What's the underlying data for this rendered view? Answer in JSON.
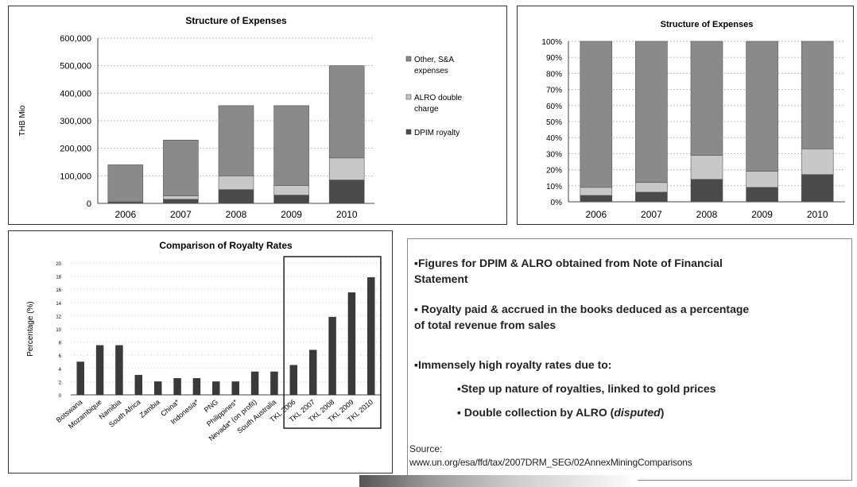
{
  "chart_data": [
    {
      "type": "bar",
      "stacked": true,
      "title": "Structure of Expenses",
      "ylabel": "THB Mio",
      "ylim": [
        0,
        600000
      ],
      "yticks": [
        "600,000",
        "500,000",
        "400,000",
        "300,000",
        "200,000",
        "100,000",
        "0"
      ],
      "categories": [
        "2006",
        "2007",
        "2008",
        "2009",
        "2010"
      ],
      "series": [
        {
          "name": "DPIM royalty",
          "color": "#4a4a4a",
          "values": [
            5000,
            15000,
            50000,
            30000,
            85000
          ]
        },
        {
          "name": "ALRO double charge",
          "color": "#c8c8c8",
          "values": [
            3000,
            12000,
            50000,
            35000,
            80000
          ]
        },
        {
          "name": "Other, S&A expenses",
          "color": "#8a8a8a",
          "values": [
            132000,
            203000,
            255000,
            290000,
            335000
          ]
        }
      ],
      "legend_position": "right"
    },
    {
      "type": "bar",
      "stacked": true,
      "percent": true,
      "title": "Structure of Expenses",
      "ylim": [
        0,
        100
      ],
      "yticks": [
        "100%",
        "90%",
        "80%",
        "70%",
        "60%",
        "50%",
        "40%",
        "30%",
        "20%",
        "10%",
        "0%"
      ],
      "categories": [
        "2006",
        "2007",
        "2008",
        "2009",
        "2010"
      ],
      "series": [
        {
          "color": "#4a4a4a",
          "values": [
            4,
            6,
            14,
            9,
            17
          ]
        },
        {
          "color": "#c8c8c8",
          "values": [
            5,
            6,
            15,
            10,
            16
          ]
        },
        {
          "color": "#8a8a8a",
          "values": [
            91,
            88,
            71,
            81,
            67
          ]
        }
      ]
    },
    {
      "type": "bar",
      "title": "Comparison of Royalty Rates",
      "ylabel": "Percentage (%)",
      "ylim": [
        0,
        20
      ],
      "yticks": [
        "20",
        "18",
        "16",
        "14",
        "12",
        "10",
        "8",
        "6",
        "4",
        "2",
        "0"
      ],
      "categories": [
        "Botswana",
        "Mozambique",
        "Namibia",
        "South Africa",
        "Zambia",
        "China*",
        "Indonesia*",
        "PNG",
        "Philippines*",
        "Nevada* (on profit)",
        "South Australia",
        "TKL 2006",
        "TKL 2007",
        "TKL 2008",
        "TKL 2009",
        "TKL 2010"
      ],
      "values": [
        5,
        7.5,
        7.5,
        3,
        2,
        2.5,
        2.5,
        2,
        2,
        3.5,
        3.5,
        4.5,
        6.8,
        11.8,
        15.5,
        17.8
      ],
      "highlight": [
        "TKL 2006",
        "TKL 2007",
        "TKL 2008",
        "TKL 2009",
        "TKL 2010"
      ]
    }
  ],
  "notes": {
    "line1a": "▪Figures for DPIM & ALRO obtained from Note of Financial",
    "line1b": "Statement",
    "line2a": "▪ Royalty paid & accrued in the books deduced as a percentage",
    "line2b": "of total revenue from sales",
    "line3": "▪Immensely high royalty rates due to:",
    "line4": "▪Step up nature of royalties, linked to gold prices",
    "line5_prefix": "▪ Double collection by ALRO (",
    "line5_em": "disputed",
    "line5_suffix": ")",
    "source_label": "Source:",
    "source_url": "www.un.org/esa/ffd/tax/2007DRM_SEG/02AnnexMiningComparisons"
  }
}
